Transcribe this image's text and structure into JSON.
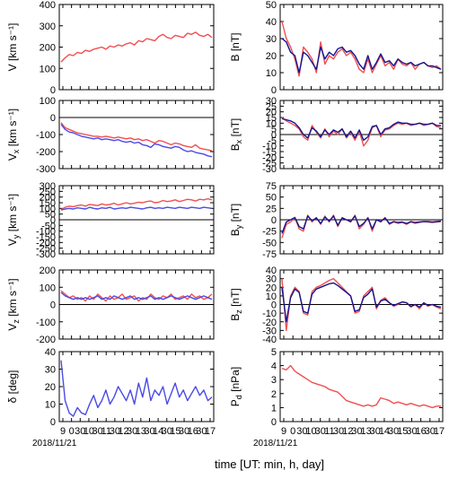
{
  "figure": {
    "date_label": "2018/11/21",
    "xlabel": "time [UT: min, h, day]",
    "x_tick_labels": [
      "9",
      "0",
      "30",
      "10",
      "30",
      "11",
      "30",
      "12",
      "30",
      "13",
      "30",
      "14",
      "30",
      "15",
      "30",
      "16",
      "30",
      "17"
    ],
    "colors": {
      "red": "#f05050",
      "blue": "#4a4ae8",
      "navy": "#141490",
      "axis": "#000000"
    }
  },
  "chart_data": [
    {
      "id": "v",
      "type": "line",
      "ylabel": "V [km s⁻¹]",
      "ylim": [
        0,
        400
      ],
      "yticks": [
        0,
        100,
        200,
        300,
        400
      ],
      "zero_line": false,
      "series": [
        {
          "color": "red",
          "values": [
            130,
            150,
            165,
            160,
            175,
            170,
            185,
            180,
            190,
            195,
            200,
            190,
            205,
            200,
            210,
            205,
            215,
            220,
            210,
            230,
            225,
            240,
            235,
            230,
            250,
            260,
            245,
            240,
            255,
            250,
            245,
            265,
            260,
            270,
            255,
            250,
            260,
            245
          ]
        }
      ]
    },
    {
      "id": "vx",
      "type": "line",
      "ylabel": "V_x [km s⁻¹]",
      "ylim": [
        -300,
        100
      ],
      "yticks": [
        -300,
        -200,
        -100,
        0,
        100
      ],
      "zero_line": true,
      "series": [
        {
          "color": "red",
          "values": [
            -30,
            -60,
            -70,
            -80,
            -90,
            -95,
            -100,
            -105,
            -110,
            -110,
            -115,
            -110,
            -115,
            -120,
            -115,
            -120,
            -125,
            -120,
            -130,
            -125,
            -135,
            -130,
            -140,
            -150,
            -135,
            -140,
            -150,
            -160,
            -150,
            -155,
            -165,
            -170,
            -175,
            -160,
            -180,
            -185,
            -190,
            -195
          ]
        },
        {
          "color": "blue",
          "values": [
            -40,
            -70,
            -85,
            -90,
            -100,
            -110,
            -115,
            -120,
            -125,
            -120,
            -130,
            -125,
            -130,
            -135,
            -130,
            -140,
            -145,
            -140,
            -150,
            -145,
            -160,
            -165,
            -175,
            -155,
            -160,
            -170,
            -175,
            -180,
            -170,
            -175,
            -190,
            -200,
            -195,
            -205,
            -210,
            -215,
            -225,
            -230
          ]
        }
      ]
    },
    {
      "id": "vy",
      "type": "line",
      "ylabel": "V_y [km s⁻¹]",
      "ylim": [
        -300,
        300
      ],
      "yticks": [
        -300,
        -250,
        -200,
        -150,
        -100,
        -50,
        0,
        50,
        100,
        150,
        200,
        250,
        300
      ],
      "zero_line": true,
      "series": [
        {
          "color": "red",
          "values": [
            90,
            110,
            120,
            115,
            125,
            130,
            120,
            135,
            130,
            125,
            140,
            130,
            135,
            145,
            130,
            140,
            150,
            140,
            145,
            155,
            150,
            160,
            165,
            150,
            155,
            170,
            160,
            165,
            175,
            160,
            170,
            180,
            175,
            165,
            180,
            175,
            185,
            175
          ]
        },
        {
          "color": "blue",
          "values": [
            85,
            95,
            100,
            95,
            105,
            100,
            95,
            110,
            100,
            95,
            105,
            100,
            110,
            95,
            100,
            105,
            100,
            110,
            105,
            100,
            95,
            105,
            110,
            100,
            105,
            100,
            110,
            105,
            100,
            110,
            105,
            100,
            110,
            105,
            100,
            110,
            105,
            100
          ]
        }
      ]
    },
    {
      "id": "vz",
      "type": "line",
      "ylabel": "V_z [km s⁻¹]",
      "ylim": [
        -200,
        200
      ],
      "yticks": [
        -200,
        -100,
        0,
        100,
        200
      ],
      "zero_line": true,
      "series": [
        {
          "color": "red",
          "values": [
            80,
            60,
            40,
            50,
            30,
            40,
            20,
            50,
            30,
            60,
            40,
            20,
            50,
            30,
            40,
            60,
            30,
            40,
            50,
            20,
            40,
            30,
            60,
            40,
            30,
            50,
            40,
            60,
            30,
            40,
            50,
            30,
            60,
            40,
            50,
            30,
            40,
            60
          ]
        },
        {
          "color": "blue",
          "values": [
            70,
            50,
            40,
            30,
            40,
            30,
            40,
            30,
            40,
            50,
            30,
            40,
            30,
            50,
            40,
            30,
            40,
            50,
            30,
            40,
            30,
            40,
            50,
            30,
            40,
            30,
            40,
            50,
            40,
            30,
            40,
            50,
            40,
            30,
            40,
            50,
            40,
            30
          ]
        }
      ]
    },
    {
      "id": "delta",
      "type": "line",
      "ylabel": "δ [deg]",
      "ylim": [
        0,
        40
      ],
      "yticks": [
        0,
        10,
        20,
        30,
        40
      ],
      "zero_line": false,
      "series": [
        {
          "color": "blue",
          "values": [
            35,
            12,
            5,
            3,
            8,
            5,
            4,
            10,
            15,
            8,
            12,
            18,
            10,
            14,
            20,
            16,
            12,
            18,
            10,
            22,
            14,
            25,
            12,
            18,
            15,
            20,
            10,
            16,
            22,
            14,
            18,
            12,
            16,
            20,
            15,
            18,
            12,
            14
          ]
        }
      ]
    },
    {
      "id": "b",
      "type": "line",
      "ylabel": "B [nT]",
      "ylim": [
        0,
        50
      ],
      "yticks": [
        0,
        10,
        20,
        30,
        40,
        50
      ],
      "zero_line": false,
      "series": [
        {
          "color": "red",
          "values": [
            40,
            30,
            25,
            18,
            8,
            25,
            22,
            18,
            10,
            28,
            15,
            20,
            18,
            22,
            24,
            20,
            22,
            18,
            12,
            10,
            18,
            10,
            15,
            20,
            14,
            16,
            12,
            18,
            15,
            14,
            16,
            12,
            15,
            16,
            14,
            13,
            14,
            12
          ]
        },
        {
          "color": "navy",
          "values": [
            30,
            28,
            22,
            20,
            10,
            22,
            20,
            16,
            12,
            25,
            18,
            22,
            20,
            24,
            25,
            22,
            23,
            20,
            15,
            12,
            20,
            12,
            16,
            21,
            16,
            17,
            14,
            18,
            16,
            15,
            16,
            14,
            15,
            16,
            14,
            14,
            13,
            12
          ]
        }
      ]
    },
    {
      "id": "bx",
      "type": "line",
      "ylabel": "B_x [nT]",
      "ylim": [
        -30,
        30
      ],
      "yticks": [
        -30,
        -25,
        -20,
        -15,
        -10,
        -5,
        0,
        5,
        10,
        15,
        20,
        25,
        30
      ],
      "zero_line": true,
      "series": [
        {
          "color": "red",
          "values": [
            15,
            12,
            10,
            8,
            5,
            -2,
            -5,
            8,
            2,
            -3,
            5,
            -2,
            3,
            0,
            5,
            -3,
            2,
            -5,
            3,
            -10,
            -5,
            6,
            8,
            -2,
            4,
            5,
            8,
            10,
            9,
            10,
            8,
            9,
            10,
            8,
            9,
            10,
            7,
            6
          ]
        },
        {
          "color": "navy",
          "values": [
            14,
            13,
            12,
            10,
            6,
            0,
            -3,
            6,
            3,
            -2,
            4,
            0,
            4,
            2,
            5,
            -2,
            3,
            -3,
            4,
            -5,
            -2,
            7,
            8,
            0,
            5,
            6,
            9,
            11,
            10,
            10,
            9,
            9,
            10,
            9,
            9,
            10,
            8,
            8
          ]
        }
      ]
    },
    {
      "id": "by",
      "type": "line",
      "ylabel": "B_y [nT]",
      "ylim": [
        -75,
        75
      ],
      "yticks": [
        -75,
        -50,
        -25,
        0,
        25,
        50,
        75
      ],
      "zero_line": true,
      "series": [
        {
          "color": "red",
          "values": [
            -40,
            -10,
            -5,
            5,
            -20,
            -25,
            10,
            -5,
            5,
            -10,
            8,
            -5,
            10,
            -15,
            5,
            0,
            -5,
            10,
            -20,
            -10,
            5,
            -25,
            0,
            -5,
            5,
            -10,
            -5,
            -8,
            -6,
            -10,
            -5,
            -8,
            -6,
            -4,
            -5,
            -6,
            -5,
            -4
          ]
        },
        {
          "color": "navy",
          "values": [
            -30,
            -5,
            0,
            5,
            -15,
            -20,
            8,
            -2,
            4,
            -8,
            6,
            -3,
            8,
            -12,
            4,
            0,
            -4,
            8,
            -15,
            -8,
            4,
            -20,
            0,
            -4,
            4,
            -8,
            -4,
            -6,
            -5,
            -8,
            -4,
            -6,
            -5,
            -4,
            -4,
            -5,
            -4,
            -3
          ]
        }
      ]
    },
    {
      "id": "bz",
      "type": "line",
      "ylabel": "B_z [nT]",
      "ylim": [
        -40,
        40
      ],
      "yticks": [
        -40,
        -30,
        -20,
        -10,
        0,
        10,
        20,
        30,
        40
      ],
      "zero_line": true,
      "series": [
        {
          "color": "red",
          "values": [
            30,
            -30,
            10,
            20,
            15,
            -10,
            -12,
            15,
            20,
            22,
            25,
            28,
            30,
            25,
            20,
            15,
            10,
            -10,
            -8,
            10,
            15,
            20,
            -5,
            5,
            8,
            2,
            -2,
            0,
            3,
            2,
            -3,
            0,
            -5,
            2,
            -2,
            0,
            -3,
            -5
          ]
        },
        {
          "color": "navy",
          "values": [
            20,
            -20,
            8,
            18,
            14,
            -8,
            -10,
            12,
            18,
            20,
            22,
            24,
            25,
            22,
            18,
            14,
            10,
            -8,
            -6,
            8,
            12,
            18,
            -3,
            4,
            6,
            2,
            -1,
            1,
            3,
            2,
            -2,
            0,
            -3,
            2,
            -1,
            0,
            -2,
            -3
          ]
        }
      ]
    },
    {
      "id": "pd",
      "type": "line",
      "ylabel": "P_d [nPa]",
      "ylim": [
        0,
        5
      ],
      "yticks": [
        0,
        1,
        2,
        3,
        4,
        5
      ],
      "zero_line": false,
      "series": [
        {
          "color": "red",
          "values": [
            3.8,
            3.7,
            4.0,
            3.6,
            3.4,
            3.2,
            3.0,
            2.8,
            2.7,
            2.6,
            2.5,
            2.3,
            2.2,
            2.1,
            1.8,
            1.5,
            1.4,
            1.3,
            1.2,
            1.1,
            1.2,
            1.1,
            1.2,
            1.7,
            1.6,
            1.5,
            1.3,
            1.4,
            1.3,
            1.2,
            1.3,
            1.2,
            1.1,
            1.2,
            1.1,
            1.0,
            1.1,
            1.1
          ]
        }
      ]
    }
  ]
}
